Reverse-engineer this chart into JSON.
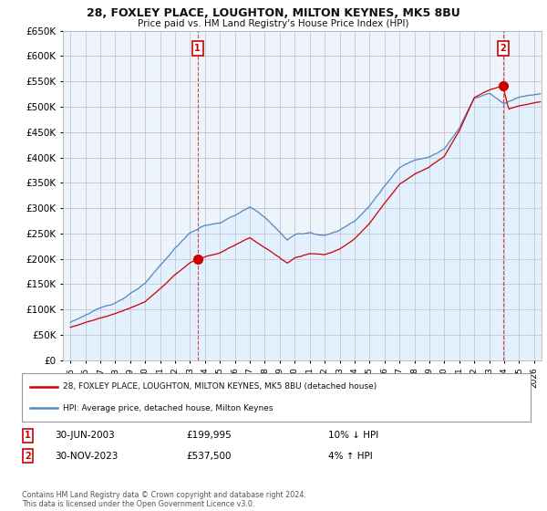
{
  "title": "28, FOXLEY PLACE, LOUGHTON, MILTON KEYNES, MK5 8BU",
  "subtitle": "Price paid vs. HM Land Registry's House Price Index (HPI)",
  "ylim": [
    0,
    650000
  ],
  "xlim_start": 1994.5,
  "xlim_end": 2026.5,
  "sale1_year": 2003.5,
  "sale1_price": 199995,
  "sale1_label": "1",
  "sale1_date": "30-JUN-2003",
  "sale1_price_str": "£199,995",
  "sale1_hpi": "10% ↓ HPI",
  "sale2_year": 2023.917,
  "sale2_price": 537500,
  "sale2_label": "2",
  "sale2_date": "30-NOV-2023",
  "sale2_price_str": "£537,500",
  "sale2_hpi": "4% ↑ HPI",
  "red_color": "#cc0000",
  "blue_color": "#5588bb",
  "blue_fill": "#ddeeff",
  "background_color": "#ffffff",
  "chart_bg": "#eef4fb",
  "grid_color": "#bbbbcc",
  "legend1": "28, FOXLEY PLACE, LOUGHTON, MILTON KEYNES, MK5 8BU (detached house)",
  "legend2": "HPI: Average price, detached house, Milton Keynes",
  "footnote": "Contains HM Land Registry data © Crown copyright and database right 2024.\nThis data is licensed under the Open Government Licence v3.0."
}
